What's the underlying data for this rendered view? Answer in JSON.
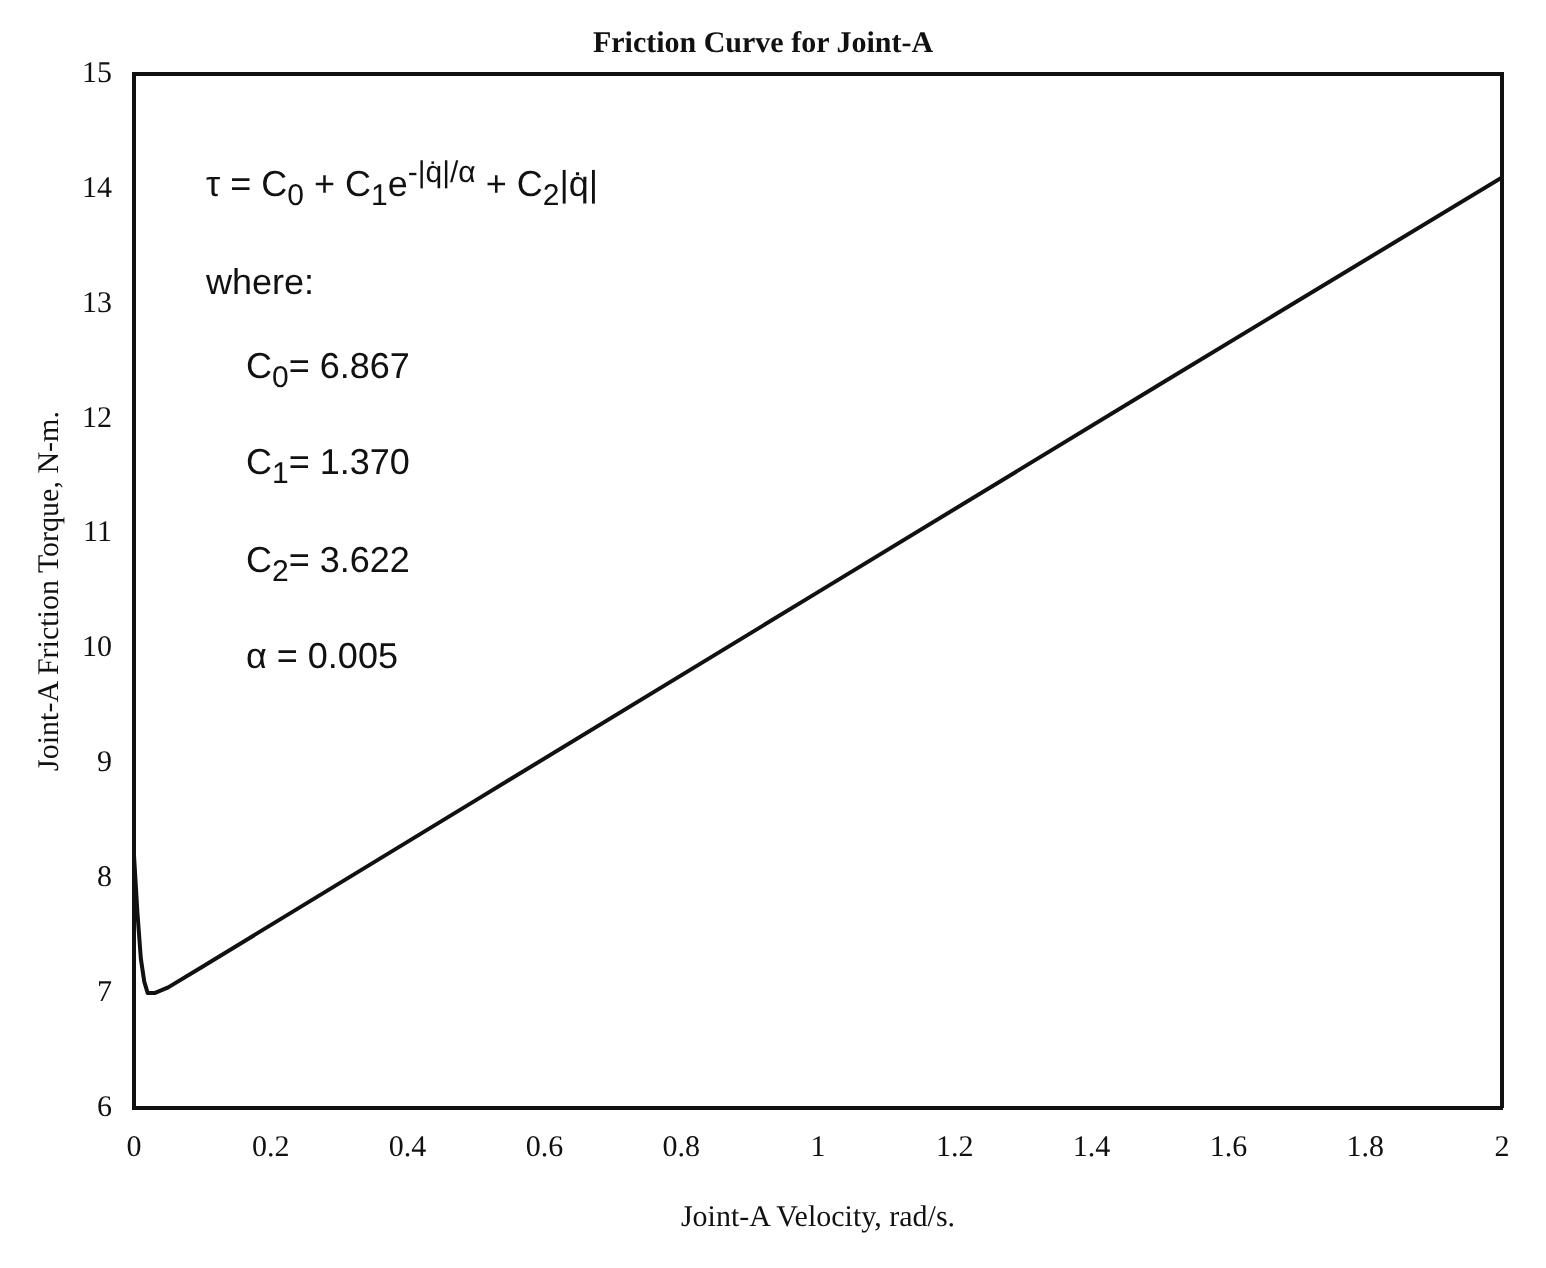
{
  "chart_data": {
    "type": "line",
    "title": "Friction Curve for Joint-A",
    "xlabel": "Joint-A Velocity, rad/s.",
    "ylabel": "Joint-A Friction Torque, N-m.",
    "x": [
      0,
      0.005,
      0.01,
      0.015,
      0.02,
      0.03,
      0.05,
      0.1,
      0.5,
      1,
      1.5,
      2
    ],
    "series": [
      {
        "color": "#111111",
        "values": [
          8.2,
          7.7,
          7.3,
          7.1,
          7.0,
          7.0,
          7.05,
          7.23,
          8.68,
          10.49,
          12.3,
          14.1
        ]
      }
    ],
    "xlim": [
      0,
      2
    ],
    "xticks": [
      0,
      0.2,
      0.4,
      0.6,
      0.8,
      1,
      1.2,
      1.4,
      1.6,
      1.8,
      2
    ],
    "ylim": [
      6,
      15
    ],
    "yticks": [
      6,
      7,
      8,
      9,
      10,
      11,
      12,
      13,
      14,
      15
    ],
    "annotations": [
      "τ = C$_{0}$ + C$_{1}$e$^{-|q̇|/α}$ + C$_{2}$|q̇|",
      "where:",
      "C$_{0}$= 6.867",
      "C$_{1}$= 1.370",
      "C$_{2}$= 3.622",
      "α = 0.005"
    ],
    "grid": false,
    "legend": false
  }
}
